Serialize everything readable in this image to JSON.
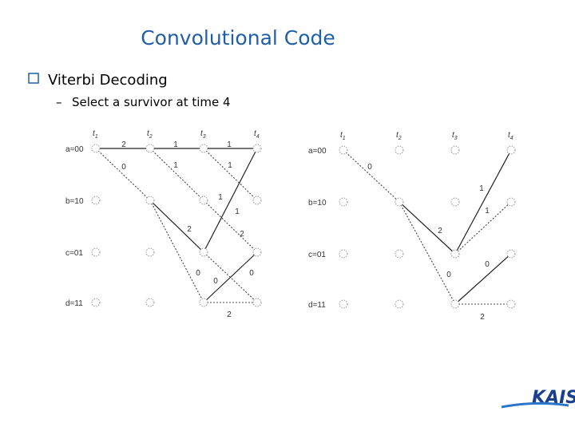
{
  "title": "Convolutional Code",
  "bullet": "Viterbi Decoding",
  "sub_bullet": "Select a survivor at time 4",
  "trellis_left": {
    "times": [
      {
        "base": "t",
        "sub": "1"
      },
      {
        "base": "t",
        "sub": "2"
      },
      {
        "base": "t",
        "sub": "3"
      },
      {
        "base": "t",
        "sub": "4"
      }
    ],
    "states": [
      "a=00",
      "b=10",
      "c=01",
      "d=11"
    ],
    "labels": [
      "2",
      "1",
      "1",
      "0",
      "1",
      "1",
      "1",
      "1",
      "2",
      "2",
      "0",
      "0",
      "0",
      "2"
    ]
  },
  "trellis_right": {
    "times": [
      {
        "base": "t",
        "sub": "1"
      },
      {
        "base": "t",
        "sub": "2"
      },
      {
        "base": "t",
        "sub": "3"
      },
      {
        "base": "t",
        "sub": "4"
      }
    ],
    "states": [
      "a=00",
      "b=10",
      "c=01",
      "d=11"
    ],
    "labels": [
      "0",
      "1",
      "1",
      "2",
      "0",
      "0",
      "2"
    ]
  },
  "logo": "KAIST"
}
